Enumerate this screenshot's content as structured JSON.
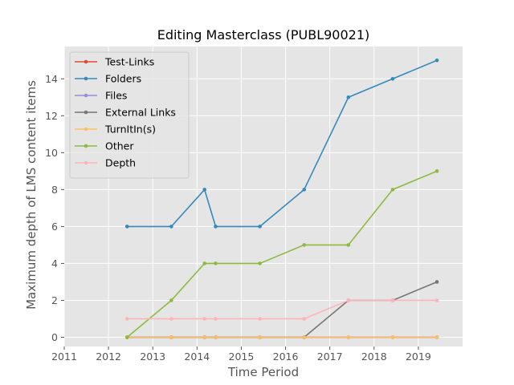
{
  "chart_data": {
    "type": "line",
    "title": "Editing Masterclass (PUBL90021)",
    "xlabel": "Time Period",
    "ylabel": "Maximum depth of LMS content items",
    "xlim": [
      2011,
      2020
    ],
    "ylim": [
      -0.5,
      15.75
    ],
    "x_ticks": [
      "2011",
      "2012",
      "2013",
      "2014",
      "2015",
      "2016",
      "2017",
      "2018",
      "2019"
    ],
    "y_ticks": [
      "0",
      "2",
      "4",
      "6",
      "8",
      "10",
      "12",
      "14"
    ],
    "grid": true,
    "legend_position": "upper-left",
    "x": [
      2012.42,
      2013.42,
      2014.17,
      2014.42,
      2015.42,
      2016.42,
      2017.42,
      2018.42,
      2019.42
    ],
    "series": [
      {
        "name": "Test-Links",
        "color": "#e24a33",
        "values": [
          0,
          0,
          0,
          0,
          0,
          0,
          0,
          0,
          0
        ]
      },
      {
        "name": "Folders",
        "color": "#348abd",
        "values": [
          6,
          6,
          8,
          6,
          6,
          8,
          13,
          14,
          15
        ]
      },
      {
        "name": "Files",
        "color": "#988ed5",
        "values": [
          0,
          0,
          0,
          0,
          0,
          0,
          0,
          0,
          0
        ]
      },
      {
        "name": "External Links",
        "color": "#777777",
        "values": [
          0,
          0,
          0,
          0,
          0,
          0,
          2,
          2,
          3
        ]
      },
      {
        "name": "TurnItIn(s)",
        "color": "#fbc15e",
        "values": [
          0,
          0,
          0,
          0,
          0,
          0,
          0,
          0,
          0
        ]
      },
      {
        "name": "Other",
        "color": "#8eba42",
        "values": [
          0,
          2,
          4,
          4,
          4,
          5,
          5,
          8,
          9
        ]
      },
      {
        "name": "Depth",
        "color": "#ffb5b8",
        "values": [
          1,
          1,
          1,
          1,
          1,
          1,
          2,
          2,
          2
        ]
      }
    ]
  }
}
